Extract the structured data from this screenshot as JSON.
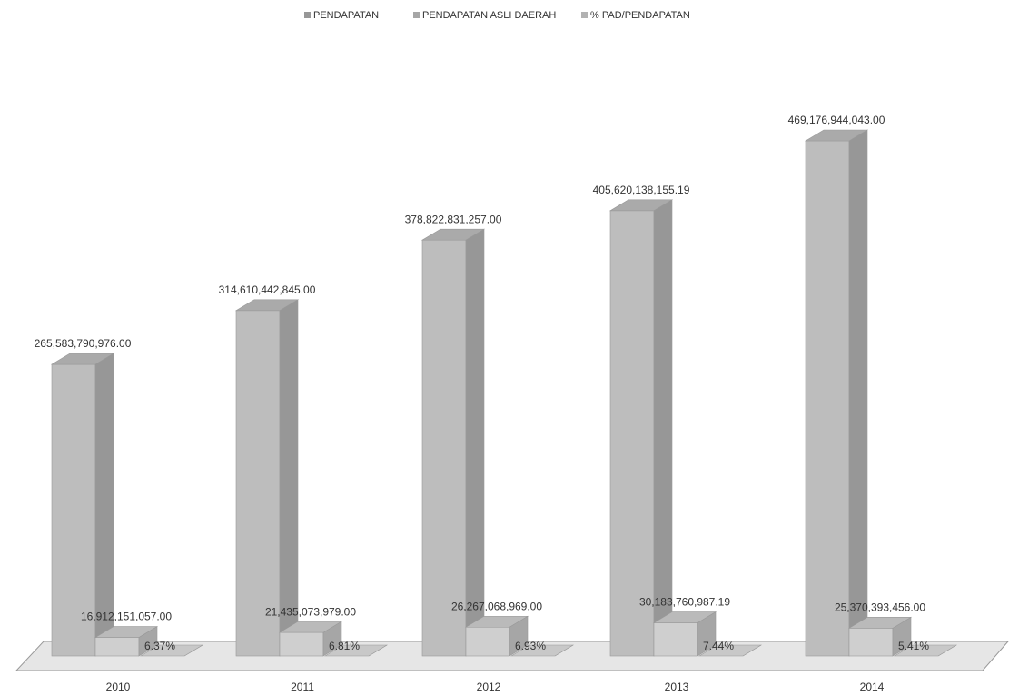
{
  "chart_data": {
    "type": "bar3d",
    "categories": [
      "2010",
      "2011",
      "2012",
      "2013",
      "2014"
    ],
    "series": [
      {
        "name": "PENDAPATAN",
        "color": "#bdbdbd",
        "values": [
          265583790976,
          314610442845,
          378822831257,
          405620138155.19,
          469176944043
        ],
        "value_labels": [
          "265,583,790,976.00",
          "314,610,442,845.00",
          "378,822,831,257.00",
          "405,620,138,155.19",
          "469,176,944,043.00"
        ]
      },
      {
        "name": "PENDAPATAN ASLI DAERAH",
        "color": "#cfcfcf",
        "values": [
          16912151057,
          21435073979,
          26267068969,
          30183760987.19,
          25370393456
        ],
        "value_labels": [
          "16,912,151,057.00",
          "21,435,073,979.00",
          "26,267,068,969.00",
          "30,183,760,987.19",
          "25,370,393,456.00"
        ]
      },
      {
        "name": "% PAD/PENDAPATAN",
        "color": "#dedede",
        "values": [
          6.37,
          6.81,
          6.93,
          7.44,
          5.41
        ],
        "value_labels": [
          "6.37%",
          "6.81%",
          "6.93%",
          "7.44%",
          "5.41%"
        ]
      }
    ],
    "legend": "top"
  }
}
